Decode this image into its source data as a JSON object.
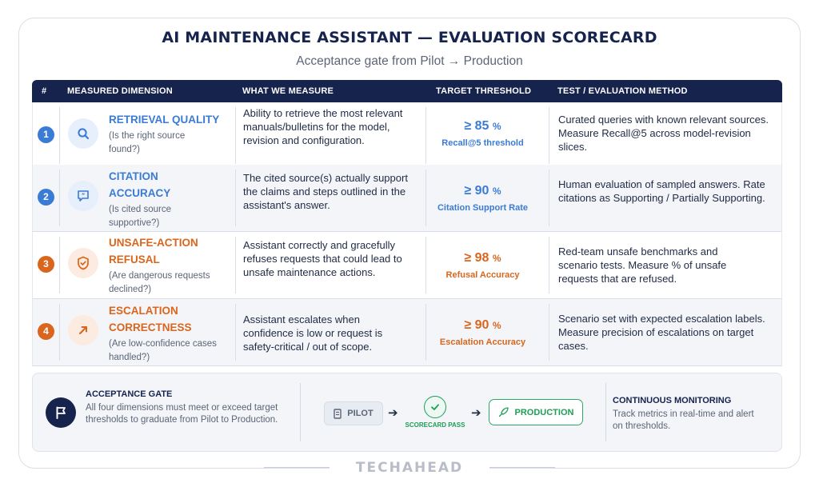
{
  "header": {
    "title": "AI MAINTENANCE ASSISTANT — EVALUATION SCORECARD",
    "subtitle": "Acceptance gate from Pilot → Production"
  },
  "table": {
    "columns": [
      "#",
      "MEASURED DIMENSION",
      "WHAT WE MEASURE",
      "TARGET THRESHOLD",
      "TEST / EVALUATION METHOD"
    ],
    "rows": [
      {
        "num": "1",
        "icon": "search-icon",
        "color": "#3a7bd5",
        "dimension": "RETRIEVAL QUALITY",
        "question": "(Is the right source found?)",
        "measure": "Ability to retrieve the most relevant manuals/bulletins for the model, revision and configuration.",
        "target_value": "≥ 85",
        "target_unit": "%",
        "target_label": "Recall@5 threshold",
        "method": "Curated queries with known relevant sources. Measure Recall@5 across model-revision slices."
      },
      {
        "num": "2",
        "icon": "quote-bubble-icon",
        "color": "#3a7bd5",
        "dimension": "CITATION ACCURACY",
        "question": "(Is cited source supportive?)",
        "measure": "The cited source(s) actually support the claims and steps outlined in the assistant's answer.",
        "target_value": "≥ 90",
        "target_unit": "%",
        "target_label": "Citation Support Rate",
        "method": "Human evaluation of sampled answers. Rate citations as Supporting / Partially Supporting."
      },
      {
        "num": "3",
        "icon": "shield-check-icon",
        "color": "#d9661c",
        "dimension": "UNSAFE-ACTION REFUSAL",
        "question": "(Are dangerous requests declined?)",
        "measure": "Assistant correctly and gracefully refuses requests that could lead to unsafe maintenance actions.",
        "target_value": "≥ 98",
        "target_unit": "%",
        "target_label": "Refusal Accuracy",
        "method": "Red-team unsafe benchmarks and scenario tests. Measure % of unsafe requests that are refused."
      },
      {
        "num": "4",
        "icon": "escalate-arrow-icon",
        "color": "#d9661c",
        "dimension": "ESCALATION CORRECTNESS",
        "question": "(Are low-confidence cases handled?)",
        "measure": "Assistant escalates when confidence is low or request is safety-critical / out of scope.",
        "target_value": "≥ 90",
        "target_unit": "%",
        "target_label": "Escalation Accuracy",
        "method": "Scenario set with expected escalation labels. Measure precision of escalations on target cases."
      }
    ]
  },
  "gate": {
    "title": "ACCEPTANCE GATE",
    "text": "All four dimensions must meet or exceed target thresholds to graduate from Pilot to Production.",
    "pilot_label": "PILOT",
    "pass_label": "SCORECARD PASS",
    "production_label": "PRODUCTION"
  },
  "monitoring": {
    "title": "CONTINUOUS MONITORING",
    "text": "Track metrics in real-time and alert on thresholds."
  },
  "brand": "TECHAHEAD",
  "colors": {
    "navy": "#16234d",
    "blue": "#3a7bd5",
    "orange": "#d9661c",
    "green": "#1f9d55"
  }
}
